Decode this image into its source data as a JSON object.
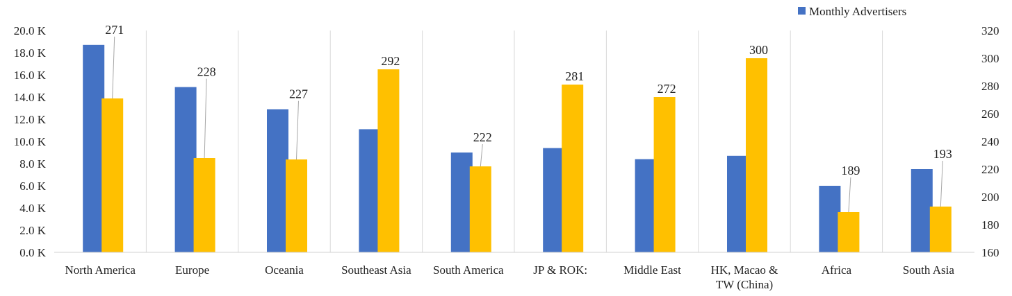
{
  "chart_data": {
    "type": "bar",
    "title": "",
    "xlabel": "",
    "ylabel": "",
    "categories": [
      "North America",
      "Europe",
      "Oceania",
      "Southeast Asia",
      "South America",
      "JP & ROK:",
      "Middle East",
      "HK, Macao &\nTW (China)",
      "Africa",
      "South Asia"
    ],
    "series": [
      {
        "name": "Monthly Advertisers",
        "axis": "left",
        "color": "#4472C4",
        "values": [
          18700,
          14900,
          12900,
          11100,
          9000,
          9400,
          8400,
          8700,
          6000,
          7500
        ]
      },
      {
        "axis": "right",
        "color": "#FFC000",
        "values": [
          271,
          228,
          227,
          292,
          222,
          281,
          272,
          300,
          189,
          193
        ]
      }
    ],
    "left_axis": {
      "ylim": [
        0,
        20000
      ],
      "ticks": [
        "0.0 K",
        "2.0 K",
        "4.0 K",
        "6.0 K",
        "8.0 K",
        "10.0 K",
        "12.0 K",
        "14.0 K",
        "16.0 K",
        "18.0 K",
        "20.0 K"
      ]
    },
    "right_axis": {
      "ylim": [
        160,
        320
      ],
      "ticks": [
        "160",
        "180",
        "200",
        "220",
        "240",
        "260",
        "280",
        "300",
        "320"
      ]
    },
    "data_labels": [
      "271",
      "228",
      "227",
      "292",
      "222",
      "281",
      "272",
      "300",
      "189",
      "193"
    ],
    "legend": {
      "position": "top-right",
      "entries": [
        "Monthly Advertisers"
      ]
    },
    "grid": "vertical separators between categories"
  }
}
